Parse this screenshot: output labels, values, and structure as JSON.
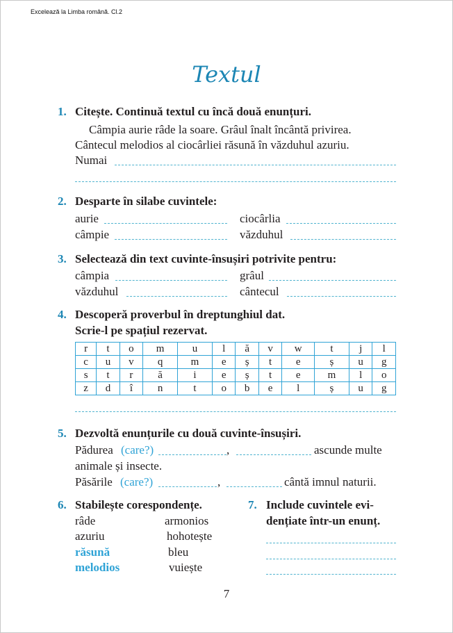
{
  "header": "Excelează la Limba română. Cl.2",
  "title": "Textul",
  "ex1": {
    "num": "1.",
    "task": "Citește. Continuă textul cu încă două enunțuri.",
    "lines": [
      "Câmpia aurie râde la soare. Grâul înalt încântă privirea.",
      "Cântecul melodios al ciocârliei răsună în văzduhul azuriu."
    ],
    "start": "Numai"
  },
  "ex2": {
    "num": "2.",
    "task": "Desparte în silabe cuvintele:",
    "words": [
      "aurie",
      "ciocârlia",
      "câmpie",
      "văzduhul"
    ]
  },
  "ex3": {
    "num": "3.",
    "task": "Selectează din text cuvinte-însușiri potrivite pentru:",
    "words": [
      "câmpia",
      "grâul",
      "văzduhul",
      "cântecul"
    ]
  },
  "ex4": {
    "num": "4.",
    "task1": "Descoperă proverbul în dreptunghiul dat.",
    "task2": "Scrie-l pe spațiul rezervat.",
    "grid": [
      [
        "r",
        "t",
        "o",
        "m",
        "u",
        "l",
        "ă",
        "v",
        "w",
        "t",
        "j",
        "l"
      ],
      [
        "c",
        "u",
        "v",
        "q",
        "m",
        "e",
        "ș",
        "t",
        "e",
        "ș",
        "u",
        "g"
      ],
      [
        "s",
        "t",
        "r",
        "ă",
        "i",
        "e",
        "ș",
        "t",
        "e",
        "m",
        "l",
        "o"
      ],
      [
        "z",
        "d",
        "î",
        "n",
        "t",
        "o",
        "b",
        "e",
        "l",
        "ș",
        "u",
        "g"
      ]
    ]
  },
  "ex5": {
    "num": "5.",
    "task": "Dezvoltă enunțurile cu două cuvinte-însușiri.",
    "s1a": "Pădurea",
    "care": "(care?)",
    "comma": ",",
    "s1b": "ascunde multe",
    "s1c": "animale și insecte.",
    "s2a": "Păsările",
    "s2b": "cântă imnul naturii."
  },
  "ex6": {
    "num": "6.",
    "task": "Stabilește corespondențe.",
    "left": [
      "râde",
      "azuriu",
      "răsună",
      "melodios"
    ],
    "right": [
      "armonios",
      "hohotește",
      "bleu",
      "vuiește"
    ]
  },
  "ex7": {
    "num": "7.",
    "task1": "Include cuvintele evi-",
    "task2": "dențiate într-un enunț."
  },
  "page_number": "7"
}
